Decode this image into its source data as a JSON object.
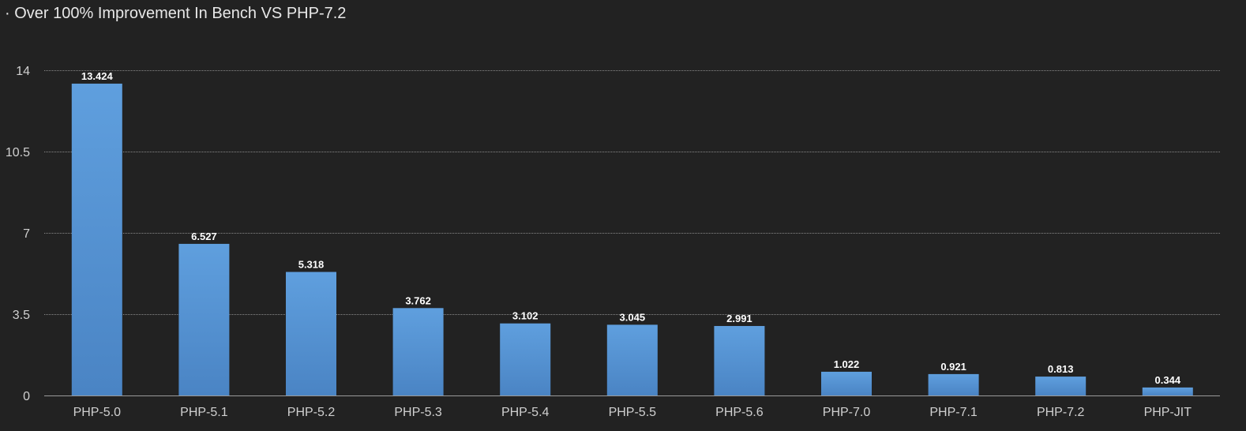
{
  "title": "· Over 100% Improvement In Bench VS PHP-7.2",
  "colors": {
    "background": "#222222",
    "bar_top": "#5f9fde",
    "bar_bottom": "#4a84c4",
    "grid": "#8a8a8a",
    "axis": "#9a9a9a",
    "text": "#d0d0d0",
    "label": "#ffffff"
  },
  "chart_data": {
    "type": "bar",
    "categories": [
      "PHP-5.0",
      "PHP-5.1",
      "PHP-5.2",
      "PHP-5.3",
      "PHP-5.4",
      "PHP-5.5",
      "PHP-5.6",
      "PHP-7.0",
      "PHP-7.1",
      "PHP-7.2",
      "PHP-JIT"
    ],
    "values": [
      13.424,
      6.527,
      5.318,
      3.762,
      3.102,
      3.045,
      2.991,
      1.022,
      0.921,
      0.813,
      0.344
    ],
    "value_labels": [
      "13.424",
      "6.527",
      "5.318",
      "3.762",
      "3.102",
      "3.045",
      "2.991",
      "1.022",
      "0.921",
      "0.813",
      "0.344"
    ],
    "yticks": [
      0,
      3.5,
      7,
      10.5,
      14
    ],
    "ytick_labels": [
      "0",
      "3.5",
      "7",
      "10.5",
      "14"
    ],
    "ylim": [
      0,
      14
    ],
    "title": "· Over 100% Improvement In Bench VS PHP-7.2",
    "xlabel": "",
    "ylabel": "",
    "grid": true,
    "legend": "none"
  }
}
